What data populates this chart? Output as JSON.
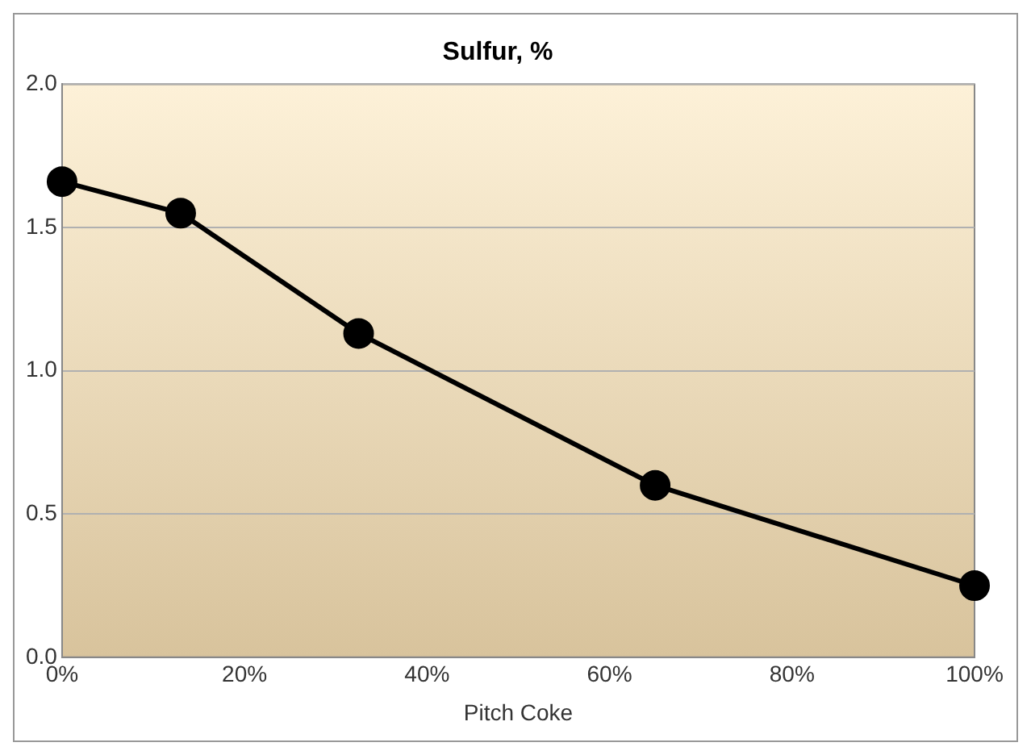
{
  "chart_data": {
    "type": "line",
    "title": "Sulfur, %",
    "xlabel": "Pitch Coke",
    "x": [
      0,
      13,
      32.5,
      65,
      100
    ],
    "series": [
      {
        "color": "#000000",
        "values": [
          1.66,
          1.55,
          1.13,
          0.6,
          0.25
        ]
      }
    ],
    "xlim": [
      0,
      100
    ],
    "xticks": [
      {
        "value": 0,
        "label": "0%"
      },
      {
        "value": 20,
        "label": "20%"
      },
      {
        "value": 40,
        "label": "40%"
      },
      {
        "value": 60,
        "label": "60%"
      },
      {
        "value": 80,
        "label": "80%"
      },
      {
        "value": 100,
        "label": "100%"
      }
    ],
    "ylim": [
      0,
      2
    ],
    "yticks": [
      {
        "value": 0,
        "label": "0.0"
      },
      {
        "value": 0.5,
        "label": "0.5"
      },
      {
        "value": 1,
        "label": "1.0"
      },
      {
        "value": 1.5,
        "label": "1.5"
      },
      {
        "value": 2,
        "label": "2.0"
      }
    ],
    "grid": "y",
    "legend": false,
    "marker": "circle",
    "line_style": "solid"
  }
}
